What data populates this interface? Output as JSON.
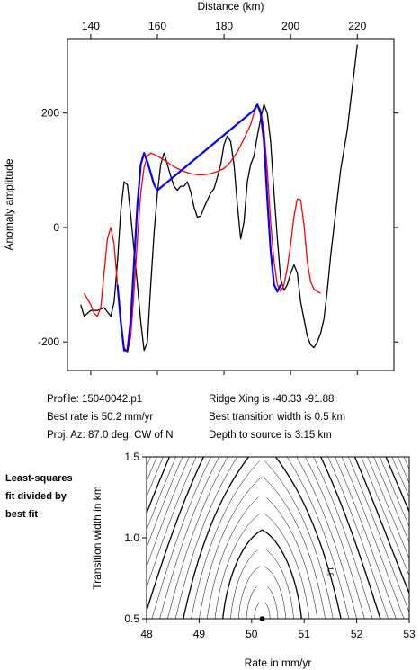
{
  "chart_data": [
    {
      "type": "line",
      "xlabel": "Distance (km)",
      "ylabel": "Anomaly amplitude",
      "xlim": [
        133,
        231
      ],
      "ylim": [
        -250,
        330
      ],
      "x_ticks": [
        140,
        160,
        180,
        200,
        220
      ],
      "y_ticks": [
        -200,
        0,
        200
      ],
      "series": [
        {
          "color": "#000000",
          "points": [
            [
              137,
              -135
            ],
            [
              138,
              -155
            ],
            [
              140,
              -145
            ],
            [
              142,
              -145
            ],
            [
              144,
              -140
            ],
            [
              146,
              -155
            ],
            [
              147,
              -130
            ],
            [
              148,
              -60
            ],
            [
              149,
              30
            ],
            [
              150,
              80
            ],
            [
              151,
              75
            ],
            [
              152,
              20
            ],
            [
              153,
              -40
            ],
            [
              154,
              -100
            ],
            [
              155,
              -165
            ],
            [
              156,
              -215
            ],
            [
              157,
              -200
            ],
            [
              158,
              -100
            ],
            [
              159,
              -10
            ],
            [
              160,
              60
            ],
            [
              161,
              110
            ],
            [
              162,
              130
            ],
            [
              163,
              110
            ],
            [
              164,
              90
            ],
            [
              165,
              72
            ],
            [
              166,
              65
            ],
            [
              167,
              72
            ],
            [
              168,
              72
            ],
            [
              169,
              80
            ],
            [
              170,
              62
            ],
            [
              171,
              35
            ],
            [
              172,
              18
            ],
            [
              173,
              20
            ],
            [
              174,
              35
            ],
            [
              175,
              48
            ],
            [
              176,
              60
            ],
            [
              177,
              68
            ],
            [
              178,
              88
            ],
            [
              179,
              110
            ],
            [
              180,
              145
            ],
            [
              181,
              160
            ],
            [
              182,
              150
            ],
            [
              183,
              110
            ],
            [
              184,
              40
            ],
            [
              185,
              -20
            ],
            [
              186,
              10
            ],
            [
              187,
              80
            ],
            [
              188,
              110
            ],
            [
              189,
              125
            ],
            [
              190,
              160
            ],
            [
              191,
              190
            ],
            [
              192,
              215
            ],
            [
              193,
              200
            ],
            [
              194,
              150
            ],
            [
              195,
              60
            ],
            [
              196,
              -20
            ],
            [
              197,
              -90
            ],
            [
              198,
              -110
            ],
            [
              199,
              -100
            ],
            [
              200,
              -80
            ],
            [
              201,
              -65
            ],
            [
              202,
              -80
            ],
            [
              203,
              -130
            ],
            [
              204,
              -160
            ],
            [
              205,
              -190
            ],
            [
              206,
              -205
            ],
            [
              207,
              -210
            ],
            [
              208,
              -200
            ],
            [
              209,
              -185
            ],
            [
              210,
              -160
            ],
            [
              211,
              -110
            ],
            [
              212,
              -50
            ],
            [
              213,
              0
            ],
            [
              214,
              50
            ],
            [
              215,
              100
            ],
            [
              216,
              135
            ],
            [
              217,
              170
            ],
            [
              218,
              220
            ],
            [
              219,
              270
            ],
            [
              220,
              320
            ]
          ]
        },
        {
          "color": "#ff0000",
          "points": [
            [
              138,
              -115
            ],
            [
              140,
              -135
            ],
            [
              141,
              -150
            ],
            [
              142,
              -155
            ],
            [
              143,
              -140
            ],
            [
              144,
              -80
            ],
            [
              145,
              -20
            ],
            [
              146,
              0
            ],
            [
              147,
              -30
            ],
            [
              148,
              -100
            ],
            [
              149,
              -170
            ],
            [
              150,
              -210
            ],
            [
              151,
              -218
            ],
            [
              152,
              -190
            ],
            [
              153,
              -110
            ],
            [
              154,
              -20
            ],
            [
              155,
              60
            ],
            [
              156,
              105
            ],
            [
              157,
              125
            ],
            [
              158,
              130
            ],
            [
              160,
              125
            ],
            [
              162,
              118
            ],
            [
              164,
              110
            ],
            [
              166,
              103
            ],
            [
              168,
              98
            ],
            [
              170,
              94
            ],
            [
              172,
              92
            ],
            [
              174,
              92
            ],
            [
              176,
              94
            ],
            [
              178,
              98
            ],
            [
              180,
              103
            ],
            [
              182,
              115
            ],
            [
              184,
              132
            ],
            [
              186,
              155
            ],
            [
              188,
              180
            ],
            [
              189,
              200
            ],
            [
              190,
              215
            ],
            [
              191,
              205
            ],
            [
              192,
              170
            ],
            [
              193,
              100
            ],
            [
              194,
              10
            ],
            [
              195,
              -60
            ],
            [
              196,
              -100
            ],
            [
              197,
              -112
            ],
            [
              198,
              -100
            ],
            [
              199,
              -70
            ],
            [
              200,
              -30
            ],
            [
              201,
              20
            ],
            [
              202,
              50
            ],
            [
              203,
              48
            ],
            [
              204,
              5
            ],
            [
              205,
              -60
            ],
            [
              206,
              -95
            ],
            [
              207,
              -108
            ],
            [
              208,
              -112
            ],
            [
              209,
              -115
            ]
          ]
        },
        {
          "color": "#0000ff",
          "points": [
            [
              148,
              -100
            ],
            [
              149,
              -165
            ],
            [
              150,
              -215
            ],
            [
              151,
              -215
            ],
            [
              152,
              -160
            ],
            [
              153,
              -60
            ],
            [
              154,
              40
            ],
            [
              155,
              110
            ],
            [
              156,
              130
            ],
            [
              157,
              115
            ],
            [
              158,
              95
            ],
            [
              159,
              75
            ],
            [
              160,
              65
            ],
            [
              189,
              205
            ],
            [
              190,
              215
            ],
            [
              191,
              200
            ],
            [
              192,
              150
            ],
            [
              193,
              50
            ],
            [
              194,
              -40
            ],
            [
              195,
              -100
            ],
            [
              196,
              -112
            ],
            [
              197,
              -100
            ]
          ]
        }
      ]
    },
    {
      "type": "contour",
      "title": "Least-squares fit divided by best fit",
      "xlabel": "Rate in mm/yr",
      "ylabel": "Transition width in km",
      "xlim": [
        48,
        53
      ],
      "ylim": [
        0.5,
        1.5
      ],
      "x_ticks": [
        48,
        49,
        50,
        51,
        52,
        53
      ],
      "y_ticks": [
        0.5,
        1.0,
        1.5
      ],
      "min_marker": {
        "x": 50.2,
        "y": 0.5
      },
      "contour_label": "1.5"
    }
  ],
  "info": {
    "profile": "Profile: 15040042.p1",
    "best_rate": "Best rate is 50.2 mm/yr",
    "proj_az": "Proj. Az: 87.0 deg. CW of N",
    "ridge_xing": "Ridge Xing is -40.33 -91.88",
    "best_width": "Best transition width is 0.5 km",
    "depth": "Depth to source is   3.15 km"
  },
  "side_label_lines": [
    "Least-squares",
    "fit divided by",
    "best fit"
  ]
}
